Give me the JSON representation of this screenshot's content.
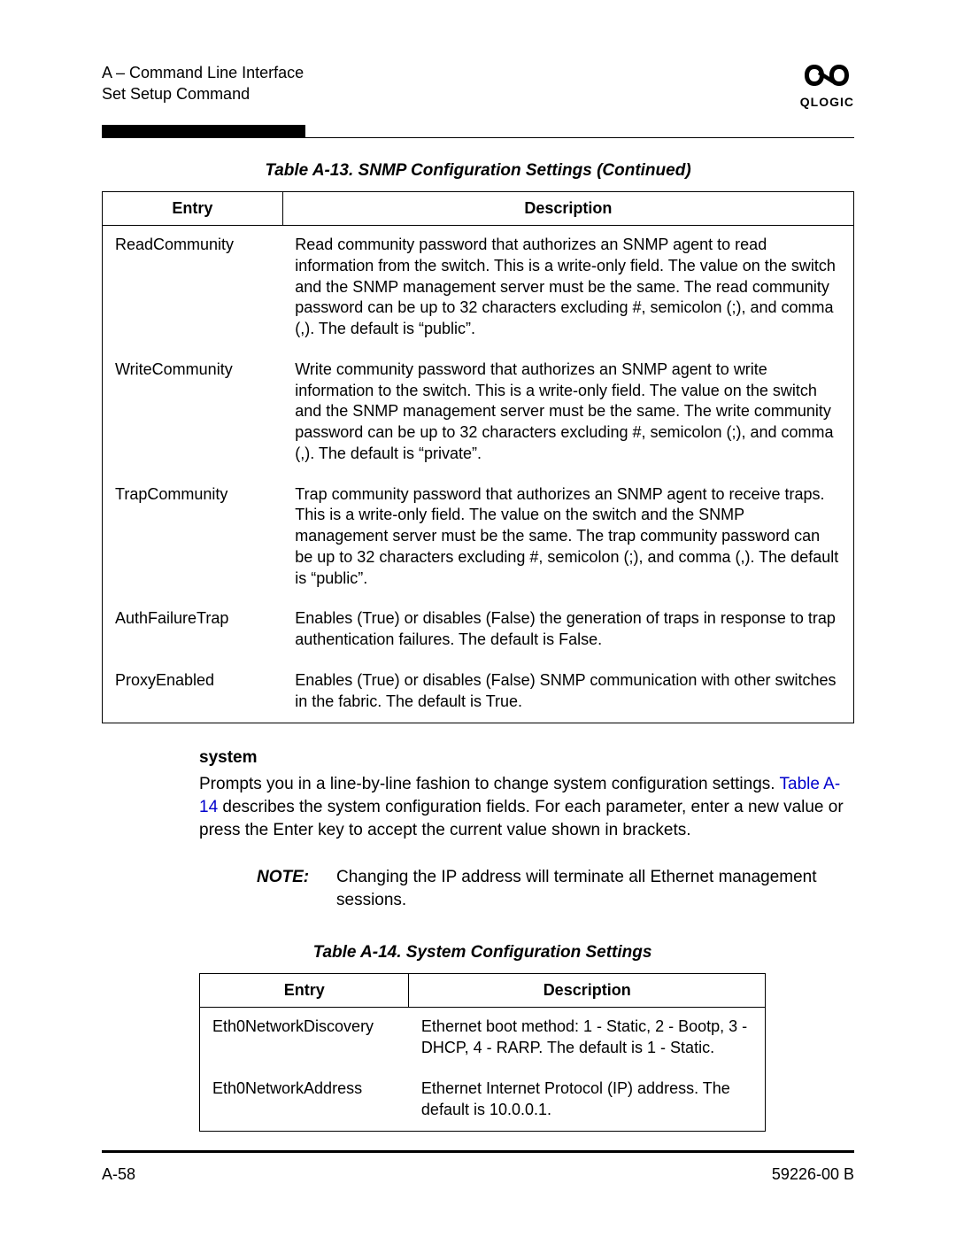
{
  "header": {
    "line1": "A – Command Line Interface",
    "line2": "Set Setup Command",
    "logo_name": "QLOGIC"
  },
  "table1": {
    "caption": "Table A-13. SNMP Configuration Settings  (Continued)",
    "col_entry": "Entry",
    "col_desc": "Description",
    "col_widths": [
      "24%",
      "76%"
    ],
    "header_bg": "#ffffff",
    "border_color": "#000000",
    "rows": [
      {
        "entry": "ReadCommunity",
        "desc": "Read community password that authorizes an SNMP agent to read information from the switch. This is a write-only field. The value on the switch and the SNMP management server must be the same. The read community password can be up to 32 characters excluding #, semicolon (;), and comma (,). The default is “public”."
      },
      {
        "entry": "WriteCommunity",
        "desc": "Write community password that authorizes an SNMP agent to write information to the switch. This is a write-only field. The value on the switch and the SNMP management server must be the same. The write community password can be up to 32 characters excluding #, semicolon (;), and comma (,). The default is “private”."
      },
      {
        "entry": "TrapCommunity",
        "desc": "Trap community password that authorizes an SNMP agent to receive traps. This is a write-only field. The value on the switch and the SNMP management server must be the same. The trap community password can be up to 32 characters excluding #, semicolon (;), and comma (,). The default is “public”."
      },
      {
        "entry": "AuthFailureTrap",
        "desc": "Enables (True) or disables (False) the generation of traps in response to trap authentication failures. The default is False."
      },
      {
        "entry": "ProxyEnabled",
        "desc": "Enables (True) or disables (False) SNMP communication with other switches in the fabric. The default is True."
      }
    ]
  },
  "section": {
    "heading": "system",
    "para_pre": "Prompts you in a line-by-line fashion to change system configuration settings. ",
    "link_text": "Table A-14",
    "link_color": "#0000cc",
    "para_post": " describes the system configuration fields. For each parameter, enter a new value or press the Enter key to accept the current value shown in brackets."
  },
  "note": {
    "label": "NOTE:",
    "body": "Changing the IP address will terminate all Ethernet management sessions."
  },
  "table2": {
    "caption": "Table A-14. System Configuration Settings",
    "col_entry": "Entry",
    "col_desc": "Description",
    "col_widths": [
      "37%",
      "63%"
    ],
    "rows": [
      {
        "entry": "Eth0NetworkDiscovery",
        "desc": "Ethernet boot method: 1 - Static, 2 - Bootp, 3 - DHCP, 4 - RARP. The default is 1 - Static."
      },
      {
        "entry": "Eth0NetworkAddress",
        "desc": "Ethernet Internet Protocol (IP) address. The default is 10.0.0.1."
      }
    ]
  },
  "footer": {
    "left": "A-58",
    "right": "59226-00 B"
  },
  "colors": {
    "text": "#000000",
    "background": "#ffffff",
    "bar": "#000000"
  }
}
